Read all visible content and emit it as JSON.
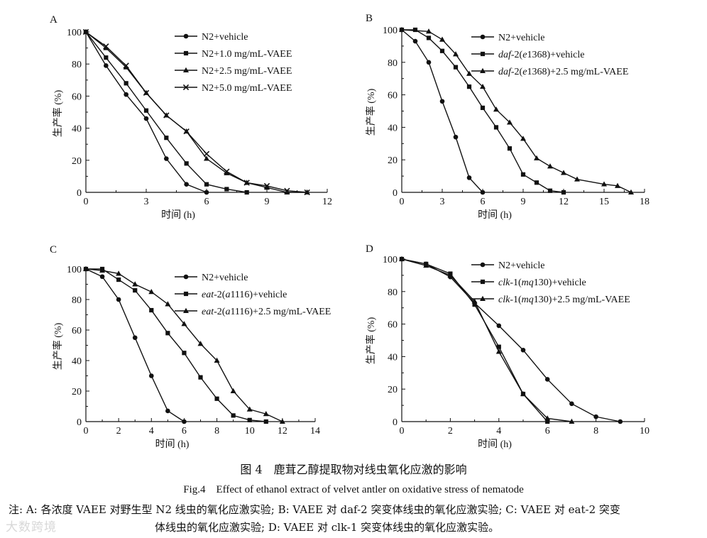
{
  "chart_data": [
    {
      "id": "A",
      "panel_label": "A",
      "type": "line",
      "xlabel": "时间 (h)",
      "ylabel": "生产率 (%)",
      "xlim": [
        0,
        12
      ],
      "ylim": [
        0,
        100
      ],
      "xticks": [
        0,
        3,
        6,
        9,
        12
      ],
      "yticks": [
        0,
        20,
        40,
        60,
        80,
        100
      ],
      "legend_position": "top-right",
      "series": [
        {
          "name": "N2+vehicle",
          "marker": "circle",
          "x": [
            0,
            1,
            2,
            3,
            4,
            5,
            6
          ],
          "y": [
            100,
            79,
            61,
            46,
            21,
            5,
            0
          ]
        },
        {
          "name": "N2+1.0 mg/mL-VAEE",
          "marker": "square",
          "x": [
            0,
            1,
            2,
            3,
            4,
            5,
            6,
            7,
            8
          ],
          "y": [
            100,
            84,
            68,
            51,
            34,
            18,
            5,
            2,
            0
          ]
        },
        {
          "name": "N2+2.5 mg/mL-VAEE",
          "marker": "triangle",
          "x": [
            0,
            1,
            2,
            3,
            4,
            5,
            6,
            7,
            8,
            9,
            10,
            11
          ],
          "y": [
            100,
            90,
            78,
            62,
            48,
            38,
            21,
            12,
            6,
            3,
            0,
            0
          ]
        },
        {
          "name": "N2+5.0 mg/mL-VAEE",
          "marker": "x",
          "x": [
            0,
            1,
            2,
            3,
            4,
            5,
            6,
            7,
            8,
            9,
            10,
            11
          ],
          "y": [
            100,
            91,
            79,
            62,
            48,
            38,
            24,
            13,
            6,
            4,
            1,
            0
          ]
        }
      ]
    },
    {
      "id": "B",
      "panel_label": "B",
      "type": "line",
      "xlabel": "时间 (h)",
      "ylabel": "生产率 (%)",
      "xlim": [
        0,
        18
      ],
      "ylim": [
        0,
        100
      ],
      "xticks": [
        0,
        3,
        6,
        9,
        12,
        15,
        18
      ],
      "yticks": [
        0,
        20,
        40,
        60,
        80,
        100
      ],
      "legend_position": "top-right",
      "series": [
        {
          "name_parts": [
            [
              "daf",
              "i"
            ]
          ],
          "name": "N2+vehicle",
          "marker": "circle",
          "x": [
            0,
            1,
            2,
            3,
            4,
            5,
            6
          ],
          "y": [
            100,
            93,
            80,
            56,
            34,
            9,
            0
          ]
        },
        {
          "name": "daf-2(e1368)+vehicle",
          "marker": "square",
          "x": [
            0,
            1,
            2,
            3,
            4,
            5,
            6,
            7,
            8,
            9,
            10,
            11,
            12
          ],
          "y": [
            100,
            100,
            95,
            87,
            77,
            65,
            52,
            40,
            27,
            11,
            6,
            1,
            0
          ]
        },
        {
          "name": "daf-2(e1368)+2.5 mg/mL-VAEE",
          "marker": "triangle",
          "x": [
            0,
            2,
            3,
            4,
            5,
            6,
            7,
            8,
            9,
            10,
            11,
            12,
            13,
            15,
            16,
            17
          ],
          "y": [
            100,
            99,
            94,
            85,
            73,
            65,
            51,
            43,
            33,
            21,
            16,
            12,
            8,
            5,
            4,
            0
          ]
        }
      ]
    },
    {
      "id": "C",
      "panel_label": "C",
      "type": "line",
      "xlabel": "时间 (h)",
      "ylabel": "生产率 (%)",
      "xlim": [
        0,
        14
      ],
      "ylim": [
        0,
        100
      ],
      "xticks": [
        0,
        2,
        4,
        6,
        8,
        10,
        12,
        14
      ],
      "yticks": [
        0,
        20,
        40,
        60,
        80,
        100
      ],
      "legend_position": "top-right",
      "series": [
        {
          "name": "N2+vehicle",
          "marker": "circle",
          "x": [
            0,
            1,
            2,
            3,
            4,
            5,
            6
          ],
          "y": [
            100,
            95,
            80,
            55,
            30,
            7,
            0
          ]
        },
        {
          "name": "eat-2(a1116)+vehicle",
          "marker": "square",
          "x": [
            0,
            1,
            2,
            3,
            4,
            5,
            6,
            7,
            8,
            9,
            10,
            11
          ],
          "y": [
            100,
            100,
            93,
            86,
            73,
            58,
            45,
            29,
            15,
            4,
            1,
            0
          ]
        },
        {
          "name": "eat-2(a1116)+2.5 mg/mL-VAEE",
          "marker": "triangle",
          "x": [
            0,
            1,
            2,
            3,
            4,
            5,
            6,
            7,
            8,
            9,
            10,
            11,
            12
          ],
          "y": [
            100,
            99,
            97,
            90,
            85,
            77,
            64,
            51,
            40,
            20,
            8,
            5,
            0
          ]
        }
      ]
    },
    {
      "id": "D",
      "panel_label": "D",
      "type": "line",
      "xlabel": "时间 (h)",
      "ylabel": "生产率 (%)",
      "xlim": [
        0,
        10
      ],
      "ylim": [
        0,
        100
      ],
      "xticks": [
        0,
        2,
        4,
        6,
        8,
        10
      ],
      "yticks": [
        0,
        20,
        40,
        60,
        80,
        100
      ],
      "legend_position": "top-right",
      "series": [
        {
          "name": "N2+vehicle",
          "marker": "circle",
          "x": [
            0,
            1,
            2,
            3,
            4,
            5,
            6,
            7,
            8,
            9
          ],
          "y": [
            100,
            97,
            89,
            73,
            59,
            44,
            26,
            11,
            3,
            0
          ]
        },
        {
          "name": "clk-1(mq130)+vehicle",
          "marker": "square",
          "x": [
            0,
            1,
            2,
            3,
            4,
            5,
            6
          ],
          "y": [
            100,
            97,
            91,
            72,
            46,
            17,
            0
          ]
        },
        {
          "name": "clk-1(mq130)+2.5 mg/mL-VAEE",
          "marker": "triangle",
          "x": [
            0,
            1,
            2,
            3,
            4,
            5,
            6,
            7
          ],
          "y": [
            100,
            96,
            90,
            74,
            43,
            17,
            2,
            0
          ]
        }
      ]
    }
  ],
  "caption_cn": "图 4　鹿茸乙醇提取物对线虫氧化应激的影响",
  "caption_en": "Fig.4　Effect of ethanol extract of velvet antler on oxidative stress of nematode",
  "note_line1": "注: A: 各浓度 VAEE 对野生型 N2 线虫的氧化应激实验; B: VAEE 对 daf-2 突变体线虫的氧化应激实验; C: VAEE 对 eat-2 突变",
  "note_line2": "体线虫的氧化应激实验; D: VAEE 对 clk-1 突变体线虫的氧化应激实验。",
  "watermark": "大数跨境"
}
